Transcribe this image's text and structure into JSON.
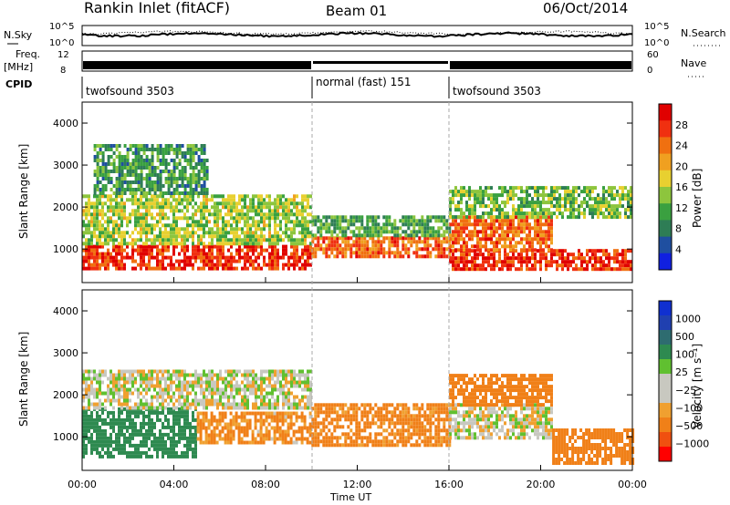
{
  "header": {
    "title": "Rankin Inlet (fitACF)",
    "beam": "Beam 01",
    "date": "06/Oct/2014"
  },
  "strip": {
    "noise_left_label": "N.Sky",
    "noise_left_ticks": [
      "10^5",
      "10^0"
    ],
    "noise_right_label": "N.Search",
    "noise_right_ticks": [
      "10^5",
      "10^0"
    ],
    "freq_label_1": "Freq.",
    "freq_label_2": "[MHz]",
    "freq_ticks": [
      "12",
      "8"
    ],
    "nave_label": "Nave",
    "nave_ticks": [
      "60",
      "0"
    ],
    "cpid_label": "CPID",
    "cpid_segments": [
      {
        "label": "twofsound 3503",
        "start": 0,
        "end": 10
      },
      {
        "label": "normal (fast) 151",
        "start": 10,
        "end": 16
      },
      {
        "label": "twofsound 3503",
        "start": 16,
        "end": 24
      }
    ]
  },
  "colors": {
    "power_scale": [
      "#1020e0",
      "#1f4fa0",
      "#2e7d55",
      "#3aa040",
      "#8dc53d",
      "#e8d030",
      "#f0a020",
      "#f07010",
      "#f03010",
      "#e00000"
    ],
    "velocity_scale": [
      "#ff0000",
      "#f05010",
      "#f08018",
      "#f0a030",
      "#c8c8c0",
      "#c8c8c0",
      "#60c030",
      "#2e8a50",
      "#2e6c70",
      "#2040b0",
      "#1030d0"
    ]
  },
  "chart_data": [
    {
      "type": "heatmap",
      "name": "power",
      "xlabel": "Time UT",
      "ylabel": "Slant Range [km]",
      "x_ticks": [
        "00:00",
        "04:00",
        "08:00",
        "12:00",
        "16:00",
        "20:00",
        "00:00"
      ],
      "x_range_hours": [
        0,
        24
      ],
      "y_ticks": [
        1000,
        2000,
        3000,
        4000
      ],
      "ylim": [
        200,
        4500
      ],
      "colorbar_label": "Power [dB]",
      "colorbar_ticks": [
        4,
        8,
        12,
        16,
        20,
        24,
        28
      ],
      "clim": [
        0,
        30
      ],
      "bands": [
        {
          "t0": 0.0,
          "t1": 10.0,
          "r0": 500,
          "r1": 1100,
          "value": 27
        },
        {
          "t0": 0.0,
          "t1": 10.0,
          "r0": 1100,
          "r1": 2300,
          "value": 14
        },
        {
          "t0": 0.5,
          "t1": 5.5,
          "r0": 2300,
          "r1": 3500,
          "value": 9
        },
        {
          "t0": 10.0,
          "t1": 16.0,
          "r0": 800,
          "r1": 1300,
          "value": 24
        },
        {
          "t0": 10.0,
          "t1": 16.0,
          "r0": 1300,
          "r1": 1800,
          "value": 10
        },
        {
          "t0": 16.0,
          "t1": 24.0,
          "r0": 500,
          "r1": 1000,
          "value": 27
        },
        {
          "t0": 16.0,
          "t1": 20.5,
          "r0": 1000,
          "r1": 1800,
          "value": 24
        },
        {
          "t0": 16.0,
          "t1": 24.0,
          "r0": 1800,
          "r1": 2500,
          "value": 12
        }
      ]
    },
    {
      "type": "heatmap",
      "name": "velocity",
      "xlabel": "Time UT",
      "ylabel": "Slant Range [km]",
      "x_ticks": [
        "00:00",
        "04:00",
        "08:00",
        "12:00",
        "16:00",
        "20:00",
        "00:00"
      ],
      "x_range_hours": [
        0,
        24
      ],
      "y_ticks": [
        1000,
        2000,
        3000,
        4000
      ],
      "ylim": [
        200,
        4500
      ],
      "colorbar_label": "Velocity [m s⁻¹]",
      "colorbar_ticks": [
        "1000",
        "500",
        "100",
        "25",
        "−25",
        "−100",
        "−500",
        "−1000"
      ],
      "bands": [
        {
          "t0": 0.0,
          "t1": 5.0,
          "r0": 500,
          "r1": 1700,
          "value": 200
        },
        {
          "t0": 0.0,
          "t1": 10.0,
          "r0": 1700,
          "r1": 2600,
          "value": 0
        },
        {
          "t0": 5.0,
          "t1": 10.0,
          "r0": 900,
          "r1": 1600,
          "value": -80
        },
        {
          "t0": 10.0,
          "t1": 16.0,
          "r0": 800,
          "r1": 1800,
          "value": -100
        },
        {
          "t0": 16.0,
          "t1": 20.5,
          "r0": 1000,
          "r1": 1800,
          "value": 0
        },
        {
          "t0": 16.0,
          "t1": 20.5,
          "r0": 1800,
          "r1": 2500,
          "value": -120
        },
        {
          "t0": 20.5,
          "t1": 24.0,
          "r0": 400,
          "r1": 1200,
          "value": -150
        }
      ]
    }
  ]
}
